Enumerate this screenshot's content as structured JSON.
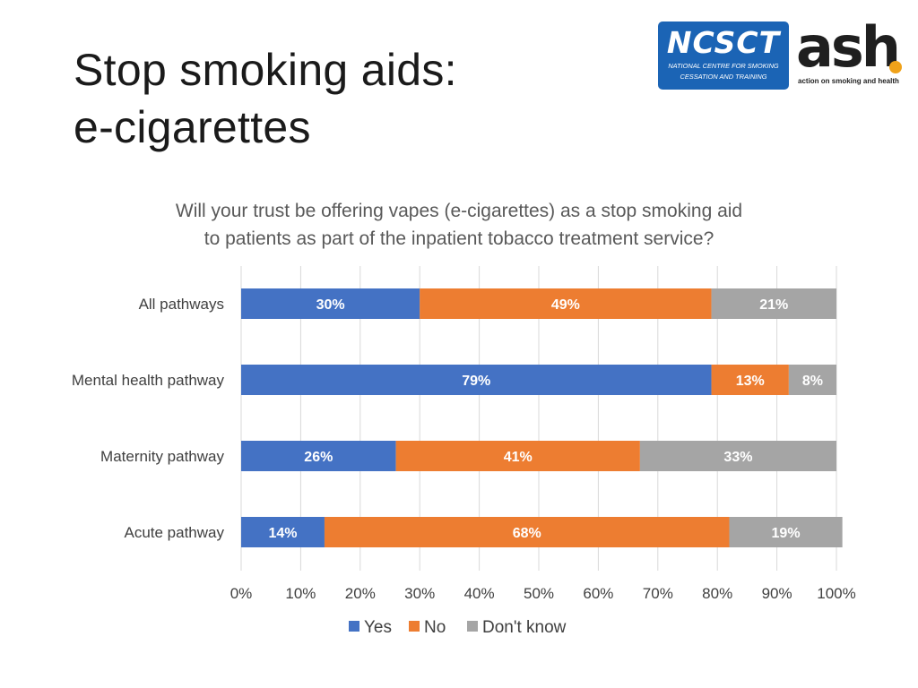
{
  "slide": {
    "title_line1": "Stop smoking aids:",
    "title_line2": "e-cigarettes"
  },
  "logos": {
    "ncsct_name": "NCSCT",
    "ncsct_line1": "NATIONAL CENTRE FOR SMOKING",
    "ncsct_line2": "CESSATION AND TRAINING",
    "ncsct_color": "#1b64b5",
    "ash_name": "ash",
    "ash_tagline": "action on smoking and health",
    "ash_dot_color": "#f0a21a"
  },
  "chart_data": {
    "type": "bar",
    "orientation": "horizontal",
    "stacked": "percent",
    "title_lines": [
      "Will your trust be offering vapes (e-cigarettes) as a stop smoking aid",
      "to patients as part of the inpatient tobacco treatment service?"
    ],
    "categories": [
      "All pathways",
      "Mental health pathway",
      "Maternity pathway",
      "Acute pathway"
    ],
    "series": [
      {
        "name": "Yes",
        "color": "#4472c4",
        "values": [
          30,
          79,
          26,
          14
        ]
      },
      {
        "name": "No",
        "color": "#ed7d31",
        "values": [
          49,
          13,
          41,
          68
        ]
      },
      {
        "name": "Don't know",
        "color": "#a5a5a5",
        "values": [
          21,
          8,
          33,
          19
        ]
      }
    ],
    "xlim": [
      0,
      100
    ],
    "xticks": [
      "0%",
      "10%",
      "20%",
      "30%",
      "40%",
      "50%",
      "60%",
      "70%",
      "80%",
      "90%",
      "100%"
    ],
    "value_suffix": "%",
    "grid": true,
    "legend_position": "bottom",
    "data_label_color": "#ffffff"
  }
}
